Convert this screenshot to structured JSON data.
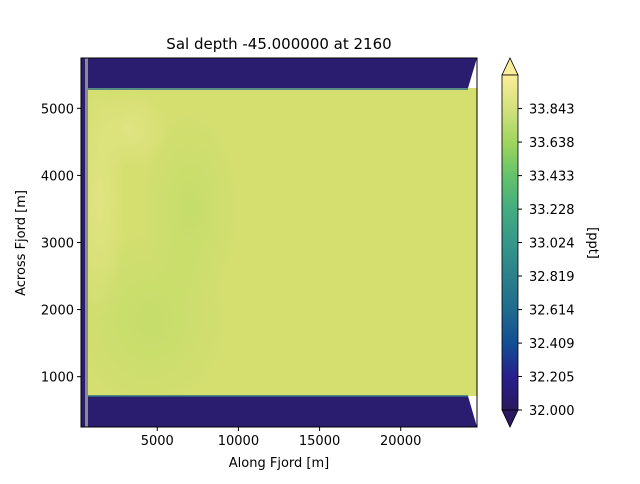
{
  "chart_data": {
    "type": "heatmap",
    "title": "Sal depth -45.000000 at 2160",
    "xlabel": "Along Fjord [m]",
    "ylabel": "Across Fjord [m]",
    "xlim": [
      300,
      24700
    ],
    "ylim": [
      250,
      5750
    ],
    "xticks": [
      5000,
      10000,
      15000,
      20000
    ],
    "xtick_labels": [
      "5000",
      "10000",
      "15000",
      "20000"
    ],
    "yticks": [
      1000,
      2000,
      3000,
      4000,
      5000
    ],
    "ytick_labels": [
      "1000",
      "2000",
      "3000",
      "4000",
      "5000"
    ],
    "colorbar": {
      "label": "[ppt]",
      "min": 32.0,
      "max": 34.048,
      "ticks": [
        32.0,
        32.205,
        32.409,
        32.614,
        32.819,
        33.024,
        33.228,
        33.433,
        33.638,
        33.843
      ],
      "tick_labels": [
        "32.000",
        "32.205",
        "32.409",
        "32.614",
        "32.819",
        "33.024",
        "33.228",
        "33.433",
        "33.638",
        "33.843"
      ],
      "extend": "both",
      "colormap": "haline"
    },
    "regions": [
      {
        "name": "land-south",
        "x": [
          300,
          24700
        ],
        "y": [
          250,
          720
        ],
        "value": 31.9
      },
      {
        "name": "land-north",
        "x": [
          300,
          24700
        ],
        "y": [
          5280,
          5750
        ],
        "value": 31.9
      },
      {
        "name": "fjord-interior",
        "x": [
          800,
          24400
        ],
        "y": [
          720,
          5280
        ],
        "value": 33.85
      }
    ],
    "grid": false
  }
}
